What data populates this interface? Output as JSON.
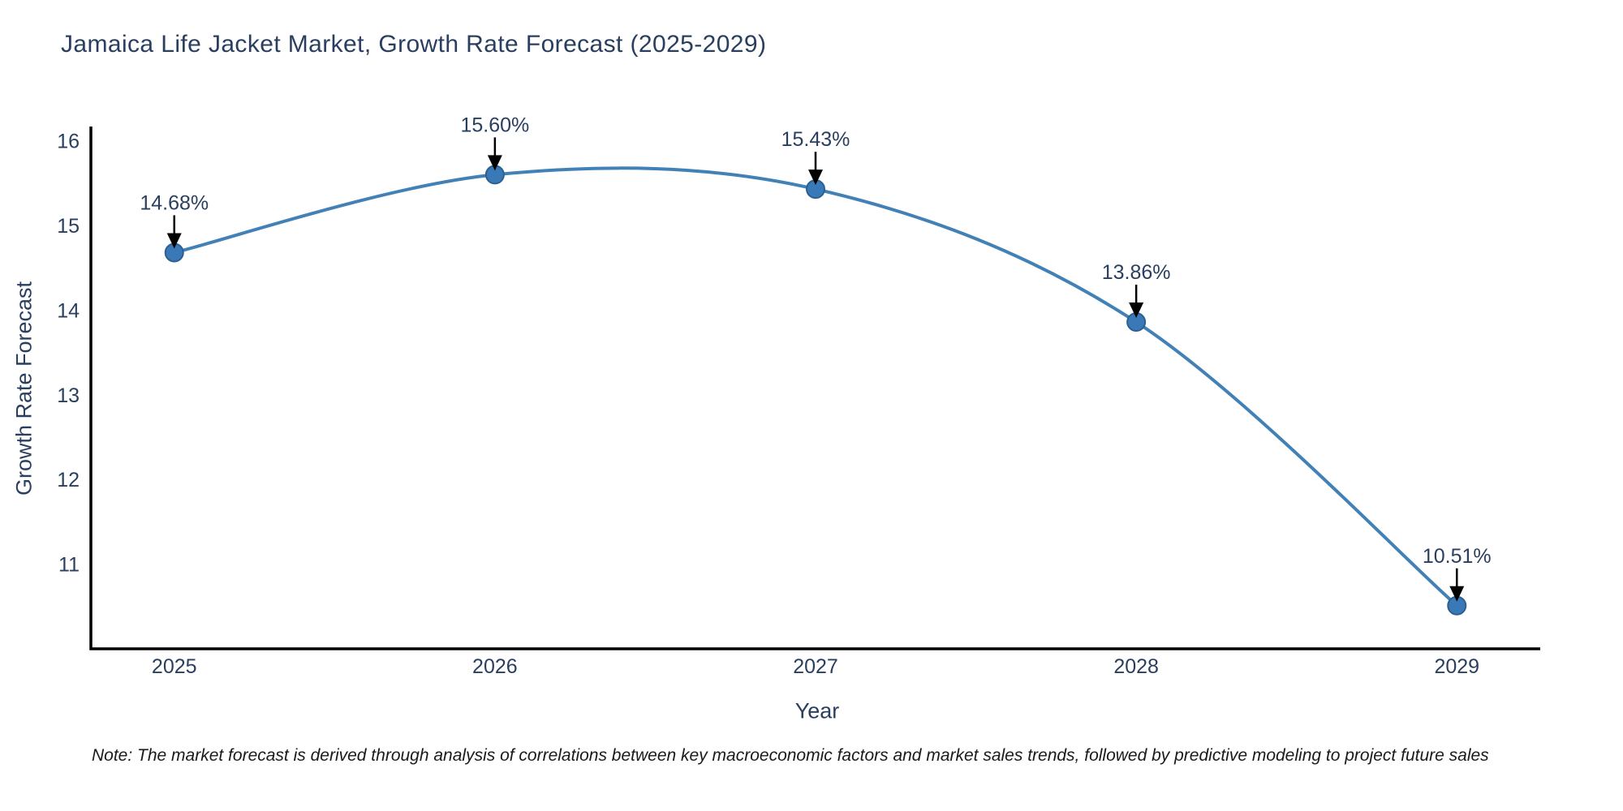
{
  "title": "Jamaica Life Jacket Market, Growth Rate Forecast (2025-2029)",
  "note": "Note: The market forecast is derived through analysis of correlations between key macroeconomic factors and market sales trends, followed by predictive modeling to project future sales",
  "chart_data": {
    "type": "line",
    "title": "Jamaica Life Jacket Market, Growth Rate Forecast (2025-2029)",
    "xlabel": "Year",
    "ylabel": "Growth Rate Forecast",
    "x": [
      2025,
      2026,
      2027,
      2028,
      2029
    ],
    "values": [
      14.68,
      15.6,
      15.43,
      13.86,
      10.51
    ],
    "point_labels": [
      "14.68%",
      "15.60%",
      "15.43%",
      "13.86%",
      "10.51%"
    ],
    "x_tick_labels": [
      "2025",
      "2026",
      "2027",
      "2028",
      "2029"
    ],
    "y_ticks": [
      11,
      12,
      13,
      14,
      15,
      16
    ],
    "xlim": [
      2024.74,
      2029.26
    ],
    "ylim": [
      10.0,
      16.15
    ],
    "line_shape": "spline",
    "grid": false,
    "legend": "none",
    "colors": {
      "line": "#4181b6",
      "marker": "#3a79b7",
      "marker_edge": "#2d608f",
      "axis": "#000000",
      "text": "#2a3f5f",
      "arrow": "#000000"
    }
  }
}
